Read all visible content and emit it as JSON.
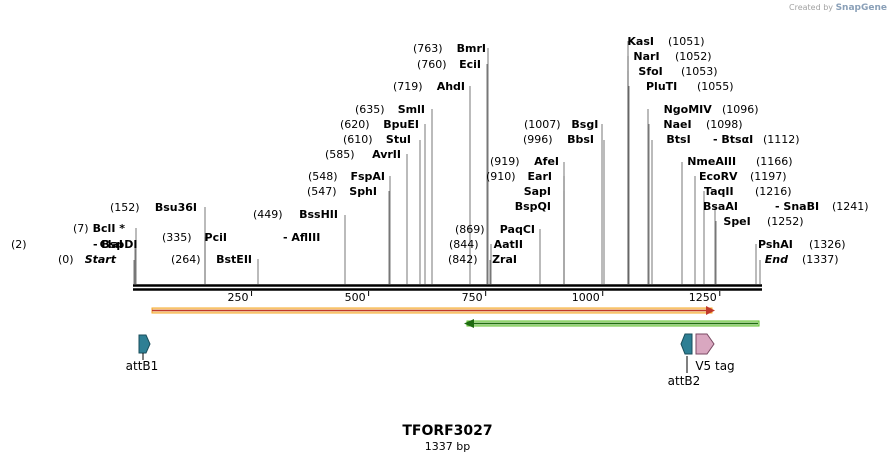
{
  "credit": {
    "prefix": "Created by",
    "brand": "SnapGene"
  },
  "sequence": {
    "name": "TFORF3027",
    "length_label": "1337 bp",
    "length": 1337
  },
  "ruler_ticks": [
    "250",
    "500",
    "750",
    "1000",
    "1250"
  ],
  "sites": [
    {
      "name": "ClaI",
      "pos": "(2)",
      "pair": "BspDI"
    },
    {
      "name": "BclI *",
      "pos": "(7)"
    },
    {
      "name": "Start",
      "pos": "(0)",
      "italic": true
    },
    {
      "name": "Bsu36I",
      "pos": "(152)"
    },
    {
      "name": "PciI",
      "pos": "(335)",
      "pair": "AflIII"
    },
    {
      "name": "BstEII",
      "pos": "(264)"
    },
    {
      "name": "BssHII",
      "pos": "(449)"
    },
    {
      "name": "FspAI",
      "pos": "(548)"
    },
    {
      "name": "SphI",
      "pos": "(547)"
    },
    {
      "name": "AvrII",
      "pos": "(585)"
    },
    {
      "name": "StuI",
      "pos": "(610)"
    },
    {
      "name": "BpuEI",
      "pos": "(620)"
    },
    {
      "name": "SmlI",
      "pos": "(635)"
    },
    {
      "name": "AhdI",
      "pos": "(719)"
    },
    {
      "name": "EciI",
      "pos": "(760)"
    },
    {
      "name": "BmrI",
      "pos": "(763)"
    },
    {
      "name": "PaqCI",
      "pos": "(869)"
    },
    {
      "name": "AatII",
      "pos": "(844)"
    },
    {
      "name": "ZraI",
      "pos": "(842)"
    },
    {
      "name": "AfeI",
      "pos": "(919)"
    },
    {
      "name": "EarI",
      "pos": "(910)"
    },
    {
      "name": "SapI",
      "pos": ""
    },
    {
      "name": "BspQI",
      "pos": ""
    },
    {
      "name": "BsgI",
      "pos": "(1007)"
    },
    {
      "name": "BbsI",
      "pos": "(996)"
    },
    {
      "name": "KasI",
      "pos": "(1051)"
    },
    {
      "name": "NarI",
      "pos": "(1052)"
    },
    {
      "name": "SfoI",
      "pos": "(1053)"
    },
    {
      "name": "PluTI",
      "pos": "(1055)"
    },
    {
      "name": "NgoMIV",
      "pos": "(1096)"
    },
    {
      "name": "NaeI",
      "pos": "(1098)"
    },
    {
      "name": "BtsI",
      "pos": "(1112)",
      "pair": "BtsαI"
    },
    {
      "name": "NmeAIII",
      "pos": "(1166)"
    },
    {
      "name": "EcoRV",
      "pos": "(1197)"
    },
    {
      "name": "TaqII",
      "pos": "(1216)"
    },
    {
      "name": "BsaAI",
      "pos": "(1241)",
      "pair": "SnaBI"
    },
    {
      "name": "SpeI",
      "pos": "(1252)"
    },
    {
      "name": "PshAI",
      "pos": "(1326)"
    },
    {
      "name": "End",
      "pos": "(1337)",
      "italic": true
    }
  ],
  "features": {
    "attB1": "attB1",
    "attB2": "attB2",
    "v5": "V5 tag"
  },
  "colors": {
    "orf_forward": "#f5a623",
    "orf_reverse": "#5cbf2a",
    "attB": "#2e7f94",
    "v5": "#d9a7c0"
  }
}
